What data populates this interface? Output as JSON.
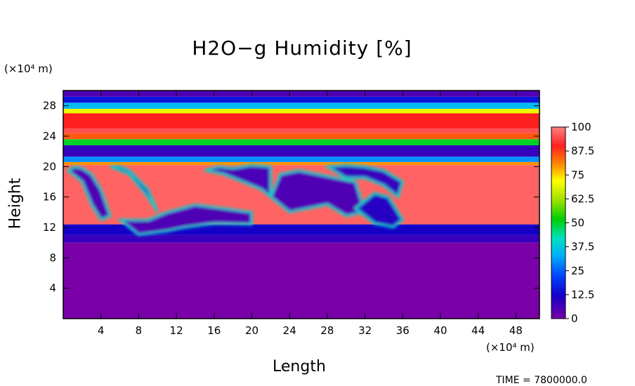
{
  "chart_data": {
    "type": "heatmap",
    "title": "H2O−g Humidity [%]",
    "xlabel": "Length",
    "ylabel": "Height",
    "x_unit_label": "(×10⁴ m)",
    "y_unit_label": "(×10⁴ m)",
    "x_ticks": [
      "4",
      "8",
      "12",
      "16",
      "20",
      "24",
      "28",
      "32",
      "36",
      "40",
      "44",
      "48"
    ],
    "y_ticks": [
      "4",
      "8",
      "12",
      "16",
      "20",
      "24",
      "28"
    ],
    "xlim": [
      0,
      50.5
    ],
    "ylim": [
      0,
      30
    ],
    "colorbar": {
      "labels": [
        "100",
        "87.5",
        "75",
        "62.5",
        "50",
        "37.5",
        "25",
        "12.5",
        "0"
      ],
      "range": [
        0,
        100
      ]
    },
    "bands": [
      {
        "y0": 0,
        "y1": 10,
        "humidity": 0
      },
      {
        "y0": 10,
        "y1": 11,
        "humidity": 8
      },
      {
        "y0": 11,
        "y1": 12.4,
        "humidity": 12
      },
      {
        "y0": 12.4,
        "y1": 20.2,
        "humidity": 97
      },
      {
        "y0": 20.2,
        "y1": 20.6,
        "humidity": 80
      },
      {
        "y0": 20.6,
        "y1": 21.3,
        "humidity": 30
      },
      {
        "y0": 21.3,
        "y1": 22.8,
        "humidity": 8
      },
      {
        "y0": 22.8,
        "y1": 23.6,
        "humidity": 50
      },
      {
        "y0": 23.6,
        "y1": 24.4,
        "humidity": 85
      },
      {
        "y0": 24.4,
        "y1": 25.0,
        "humidity": 95
      },
      {
        "y0": 25.0,
        "y1": 27.0,
        "humidity": 90
      },
      {
        "y0": 27.0,
        "y1": 27.6,
        "humidity": 70
      },
      {
        "y0": 27.6,
        "y1": 28.4,
        "humidity": 35
      },
      {
        "y0": 28.4,
        "y1": 29.2,
        "humidity": 15
      },
      {
        "y0": 29.2,
        "y1": 30,
        "humidity": 5
      }
    ],
    "dry_pockets": [
      {
        "x": [
          0.5,
          2,
          3,
          4,
          5,
          4,
          3,
          2,
          1.2
        ],
        "y": [
          19.5,
          18,
          15,
          13,
          13.5,
          17,
          19,
          19.8,
          20
        ],
        "humidity": 5
      },
      {
        "x": [
          5,
          7,
          9,
          10,
          9,
          7,
          6
        ],
        "y": [
          20,
          19,
          16,
          14,
          17,
          19.5,
          20
        ],
        "humidity": 8
      },
      {
        "x": [
          6,
          8,
          11,
          13,
          16,
          20,
          20,
          17,
          14,
          11,
          9
        ],
        "y": [
          13,
          11,
          11.5,
          12,
          12.5,
          12.4,
          14,
          14.5,
          15,
          14,
          13
        ],
        "humidity": 5
      },
      {
        "x": [
          15,
          17,
          19,
          21,
          22,
          22,
          20,
          18,
          16.5
        ],
        "y": [
          19.5,
          19,
          18,
          17,
          16,
          20,
          20.2,
          19.8,
          20
        ],
        "humidity": 6
      },
      {
        "x": [
          22,
          24,
          26,
          28,
          30,
          32,
          31,
          29,
          27,
          25,
          23
        ],
        "y": [
          16,
          14,
          14.5,
          15,
          13.5,
          14,
          18,
          18.5,
          19,
          19.5,
          19
        ],
        "humidity": 5
      },
      {
        "x": [
          28,
          30,
          32,
          34,
          35.5,
          36,
          34,
          32,
          30
        ],
        "y": [
          20,
          18.5,
          18.5,
          17.5,
          16,
          18,
          19.5,
          20,
          20.2
        ],
        "humidity": 8
      },
      {
        "x": [
          31,
          33,
          35,
          36,
          34.5,
          33
        ],
        "y": [
          14.5,
          12.5,
          12,
          13,
          16,
          16.5
        ],
        "humidity": 10
      }
    ]
  }
}
